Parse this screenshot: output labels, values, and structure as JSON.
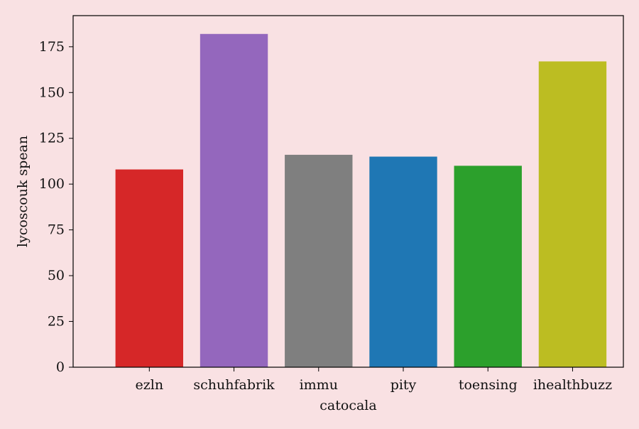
{
  "chart_data": {
    "type": "bar",
    "title": "",
    "xlabel": "catocala",
    "ylabel": "lycoscouk spean",
    "categories": [
      "ezln",
      "schuhfabrik",
      "immu",
      "pity",
      "toensing",
      "ihealthbuzz"
    ],
    "values": [
      108,
      182,
      116,
      115,
      110,
      167
    ],
    "colors": [
      "#d62728",
      "#9467bd",
      "#7f7f7f",
      "#1f77b4",
      "#2ca02c",
      "#bcbd22"
    ],
    "ylim": [
      0,
      192
    ],
    "yticks": [
      0,
      25,
      50,
      75,
      100,
      125,
      150,
      175
    ],
    "grid": false,
    "background": "#f9e1e3"
  }
}
